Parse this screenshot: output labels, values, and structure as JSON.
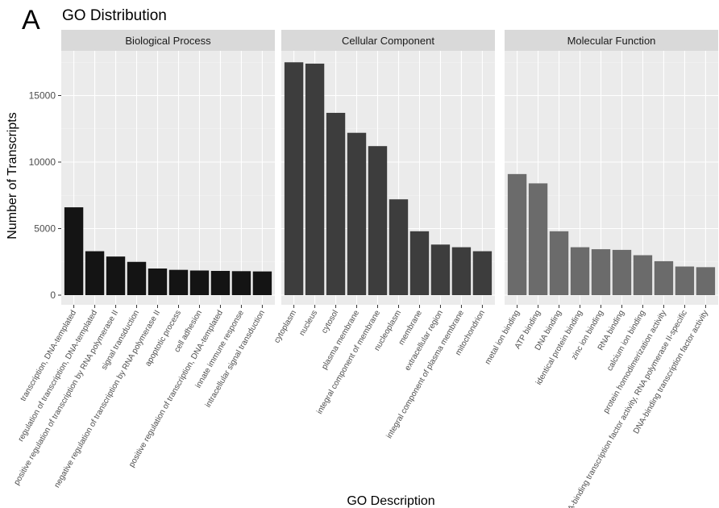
{
  "panel_letter": "A",
  "chart_data": {
    "type": "bar",
    "title": "GO Distribution",
    "xlabel": "GO Description",
    "ylabel": "Number of Transcripts",
    "ylim": [
      0,
      18000
    ],
    "yticks": [
      0,
      5000,
      10000,
      15000
    ],
    "grid": true,
    "facets": [
      {
        "name": "Biological Process",
        "color": "#141414",
        "categories": [
          "transcription, DNA-templated",
          "regulation of transcription, DNA-templated",
          "positive regulation of transcription by RNA polymerase II",
          "signal transduction",
          "negative regulation of transcription by RNA polymerase II",
          "apoptotic process",
          "cell adhesion",
          "positive regulation of transcription, DNA-templated",
          "innate immune response",
          "intracellular signal transduction"
        ],
        "values": [
          6600,
          3300,
          2900,
          2500,
          2000,
          1900,
          1850,
          1820,
          1800,
          1780
        ]
      },
      {
        "name": "Cellular Component",
        "color": "#3d3d3d",
        "categories": [
          "cytoplasm",
          "nucleus",
          "cytosol",
          "plasma membrane",
          "integral component of membrane",
          "nucleoplasm",
          "membrane",
          "extracellular region",
          "integral component of plasma membrane",
          "mitochondrion"
        ],
        "values": [
          17500,
          17400,
          13700,
          12200,
          11200,
          7200,
          4800,
          3800,
          3600,
          3300
        ]
      },
      {
        "name": "Molecular Function",
        "color": "#6b6b6b",
        "categories": [
          "metal ion binding",
          "ATP binding",
          "DNA binding",
          "identical protein binding",
          "zinc ion binding",
          "RNA binding",
          "calcium ion binding",
          "protein homodimerization activity",
          "DNA-binding transcription factor activity, RNA polymerase II-specific",
          "DNA-binding transcription factor activity"
        ],
        "values": [
          9100,
          8400,
          4800,
          3600,
          3450,
          3400,
          3000,
          2550,
          2150,
          2100
        ]
      }
    ]
  },
  "colors": {
    "panel_background": "#ebebeb",
    "strip_background": "#d9d9d9",
    "grid_major": "#ffffff",
    "grid_minor": "#f5f5f5"
  }
}
